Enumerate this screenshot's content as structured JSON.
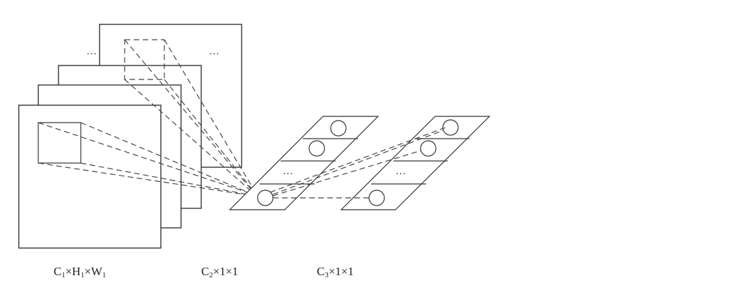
{
  "labels": {
    "input": {
      "base1": "C",
      "sub1": "1",
      "mid1": "×H",
      "sub2": "1",
      "mid2": "×W",
      "sub3": "1"
    },
    "hidden": {
      "base": "C",
      "sub": "2",
      "rest": "×1×1"
    },
    "output": {
      "base": "C",
      "sub": "3",
      "rest": "×1×1"
    }
  },
  "ellipsis": "…",
  "colors": {
    "stroke": "#333333",
    "background": "#ffffff"
  }
}
